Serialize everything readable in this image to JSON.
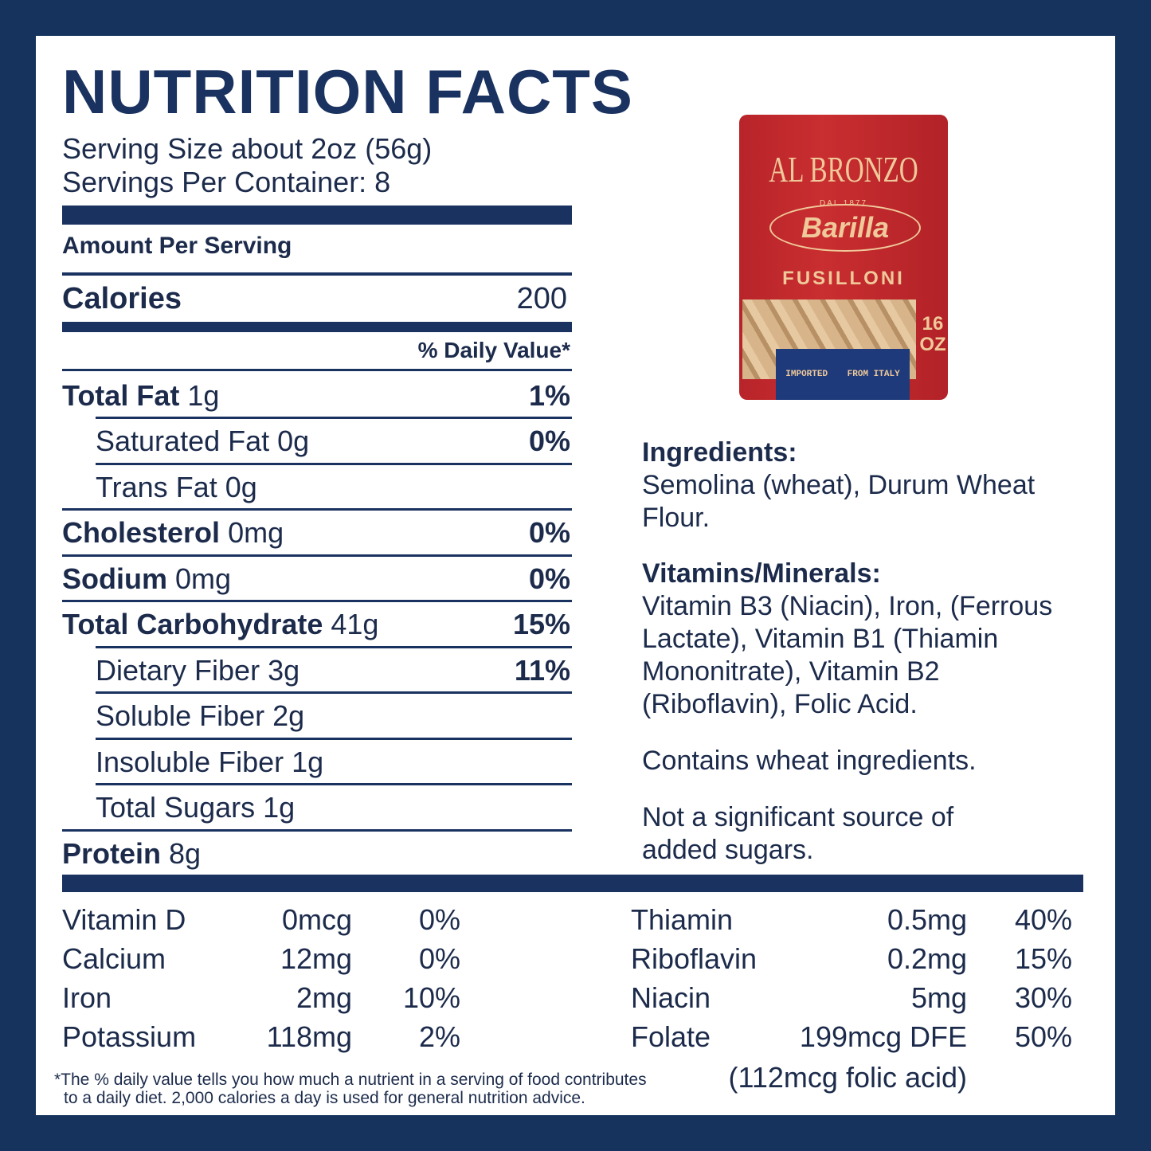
{
  "title": "NUTRITION FACTS",
  "serving_size": "Serving Size about 2oz (56g)",
  "servings_per_container": "Servings Per Container: 8",
  "amount_per_serving": "Amount Per Serving",
  "calories": {
    "label": "Calories",
    "value": "200"
  },
  "daily_value_header": "% Daily Value*",
  "rows": [
    {
      "label": "Total Fat",
      "amount": "1g",
      "dv": "1%",
      "indent": false
    },
    {
      "label": "Saturated Fat",
      "amount": "0g",
      "dv": "0%",
      "indent": true
    },
    {
      "label": "Trans Fat",
      "amount": "0g",
      "dv": "",
      "indent": true
    },
    {
      "label": "Cholesterol",
      "amount": "0mg",
      "dv": "0%",
      "indent": false
    },
    {
      "label": "Sodium",
      "amount": "0mg",
      "dv": "0%",
      "indent": false
    },
    {
      "label": "Total Carbohydrate",
      "amount": "41g",
      "dv": "15%",
      "indent": false
    },
    {
      "label": "Dietary Fiber",
      "amount": "3g",
      "dv": "11%",
      "indent": true
    },
    {
      "label": "Soluble Fiber",
      "amount": "2g",
      "dv": "",
      "indent": true
    },
    {
      "label": "Insoluble Fiber",
      "amount": "1g",
      "dv": "",
      "indent": true
    },
    {
      "label": "Total Sugars",
      "amount": "1g",
      "dv": "",
      "indent": true
    },
    {
      "label": "Protein",
      "amount": "8g",
      "dv": "",
      "indent": false
    }
  ],
  "package": {
    "brand": "AL BRONZO",
    "since": "DAL 1877",
    "maker": "Barilla",
    "product": "FUSILLONI",
    "size": "16 OZ",
    "imported": "IMPORTED",
    "from": "FROM ITALY"
  },
  "ingredients": {
    "heading": "Ingredients:",
    "text": "Semolina (wheat), Durum Wheat Flour."
  },
  "vitamins": {
    "heading": "Vitamins/Minerals:",
    "text": "Vitamin B3 (Niacin), Iron, (Ferrous Lactate), Vitamin B1 (Thiamin Mononitrate), Vitamin B2 (Riboflavin), Folic Acid."
  },
  "allergen": "Contains wheat ingredients.",
  "sugars_note": "Not a significant source of added sugars.",
  "micros_left": [
    {
      "name": "Vitamin D",
      "amount": "0mcg",
      "dv": "0%"
    },
    {
      "name": "Calcium",
      "amount": "12mg",
      "dv": "0%"
    },
    {
      "name": "Iron",
      "amount": "2mg",
      "dv": "10%"
    },
    {
      "name": "Potassium",
      "amount": "118mg",
      "dv": "2%"
    }
  ],
  "micros_right": [
    {
      "name": "Thiamin",
      "amount": "0.5mg",
      "dv": "40%"
    },
    {
      "name": "Riboflavin",
      "amount": "0.2mg",
      "dv": "15%"
    },
    {
      "name": "Niacin",
      "amount": "5mg",
      "dv": "30%"
    },
    {
      "name": "Folate",
      "amount": "199mcg DFE",
      "dv": "50%"
    }
  ],
  "folic_acid_note": "(112mcg folic acid)",
  "footnote_line1": "*The % daily value tells you how much a nutrient in a serving of food contributes",
  "footnote_line2": "to a daily diet. 2,000 calories a day is used for general nutrition advice.",
  "colors": {
    "navy": "#15335d",
    "text": "#1c2b4b",
    "package_red": "#c0282c",
    "package_text": "#f0c99a"
  }
}
